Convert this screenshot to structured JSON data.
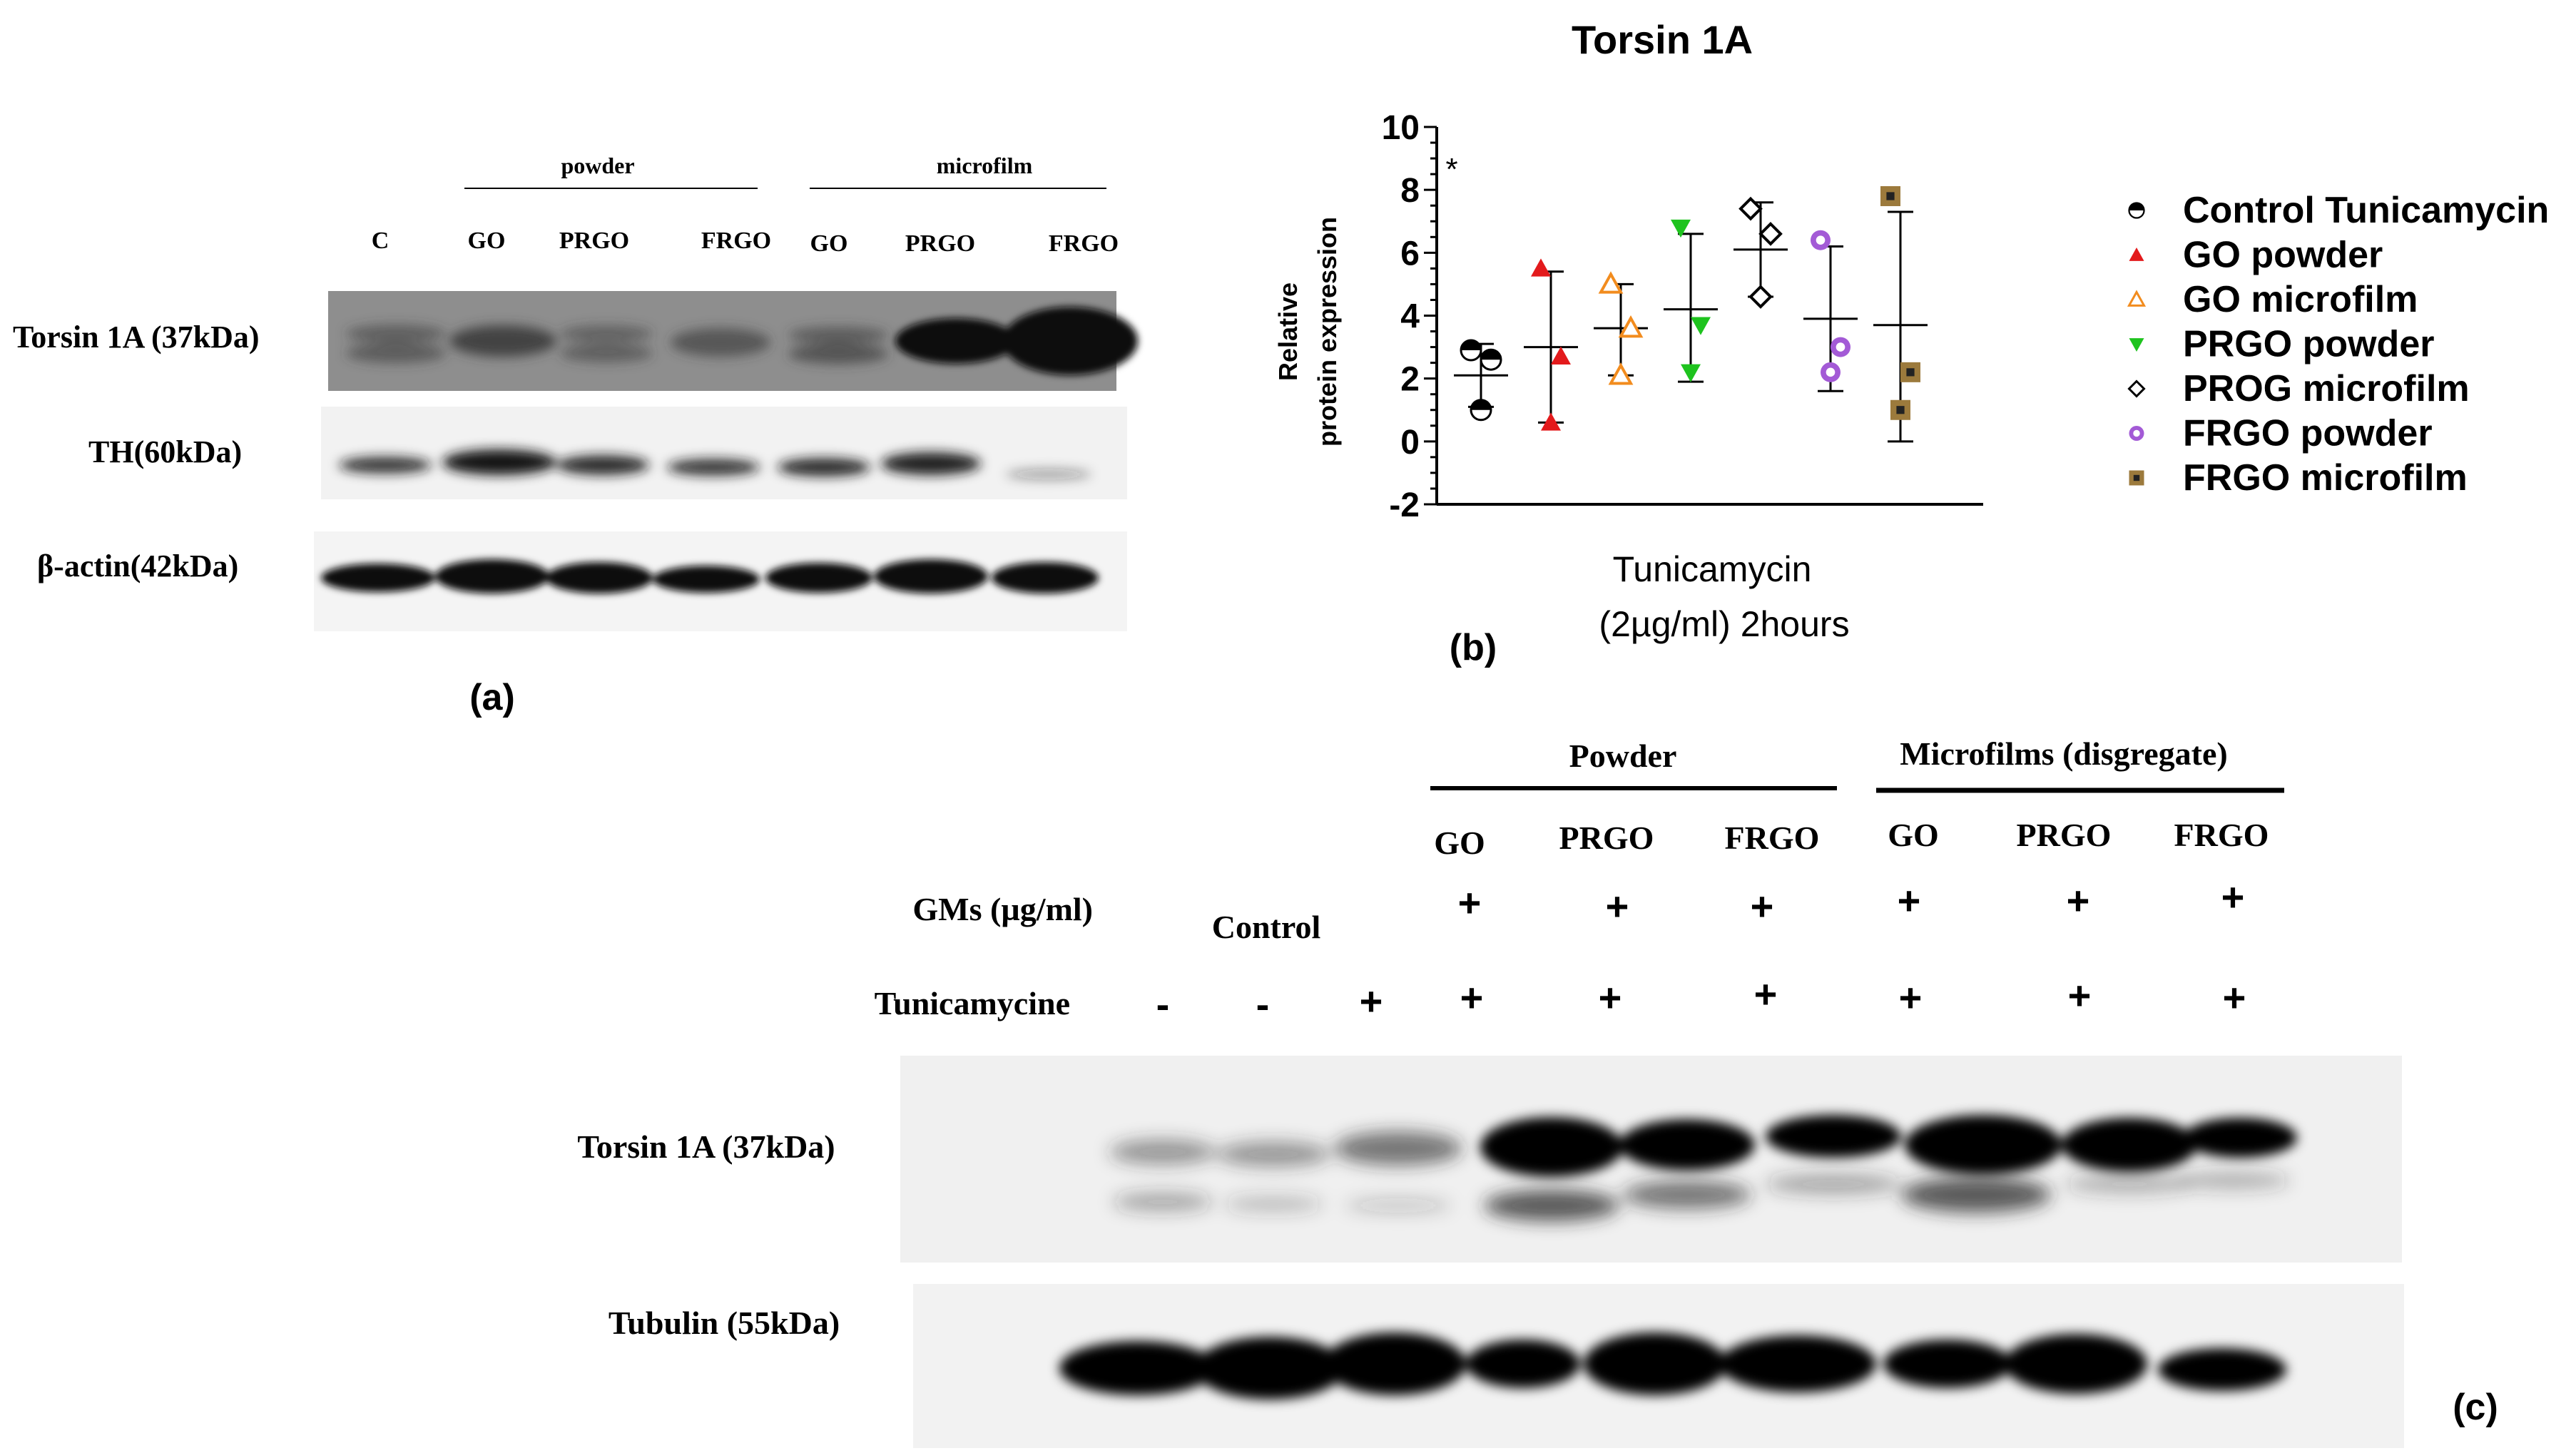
{
  "panel_a": {
    "panel_label": "(a)",
    "group_powder": "powder",
    "group_microfilm": "microfilm",
    "lanes": [
      "C",
      "GO",
      "PRGO",
      "FRGO",
      "GO",
      "PRGO",
      "FRGO"
    ],
    "row_labels": [
      "Torsin 1A (37kDa)",
      "TH(60kDa)",
      "β-actin(42kDa)"
    ]
  },
  "panel_b": {
    "panel_label": "(b)",
    "significance_mark": "*",
    "chart_data": {
      "type": "scatter",
      "title": "Torsin 1A",
      "ylabel_line1": "Relative",
      "ylabel_line2": "protein expression",
      "xlabel_line1": "Tunicamycin",
      "xlabel_line2": "(2µg/ml) 2hours",
      "ylim": [
        -2,
        10
      ],
      "yticks": [
        -2,
        0,
        2,
        4,
        6,
        8,
        10
      ],
      "yticks_labels": [
        "-2",
        "0",
        "2",
        "4",
        "6",
        "8",
        "10"
      ],
      "legend_position": "right",
      "grid": false,
      "series": [
        {
          "name": "Control Tunicamycin",
          "marker": "half-circle",
          "color": "#000000",
          "points": [
            2.9,
            2.6,
            1.0
          ],
          "mean": 2.1,
          "sd_low": 1.1,
          "sd_high": 3.1
        },
        {
          "name": "GO powder",
          "marker": "triangle-up",
          "color": "#e31a1c",
          "points": [
            5.5,
            2.7,
            0.6
          ],
          "mean": 3.0,
          "sd_low": 0.6,
          "sd_high": 5.4
        },
        {
          "name": "GO microfilm",
          "marker": "triangle-up-open",
          "color": "#f28c1e",
          "points": [
            5.0,
            3.6,
            2.1
          ],
          "mean": 3.6,
          "sd_low": 2.1,
          "sd_high": 5.0
        },
        {
          "name": "PRGO powder",
          "marker": "triangle-down",
          "color": "#1ec31e",
          "points": [
            6.8,
            3.7,
            2.2
          ],
          "mean": 4.2,
          "sd_low": 1.9,
          "sd_high": 6.6
        },
        {
          "name": "PROG microfilm",
          "marker": "diamond-open",
          "color": "#000000",
          "points": [
            7.4,
            6.6,
            4.6
          ],
          "mean": 6.1,
          "sd_low": 4.6,
          "sd_high": 7.6
        },
        {
          "name": "FRGO powder",
          "marker": "circle",
          "color": "#a35ad6",
          "points": [
            6.4,
            3.0,
            2.2
          ],
          "mean": 3.9,
          "sd_low": 1.6,
          "sd_high": 6.2
        },
        {
          "name": "FRGO microfilm",
          "marker": "square",
          "color": "#9c7a3c",
          "points": [
            7.8,
            2.2,
            1.0
          ],
          "mean": 3.7,
          "sd_low": 0.0,
          "sd_high": 7.3
        }
      ]
    }
  },
  "panel_c": {
    "panel_label": "(c)",
    "group_powder": "Powder",
    "group_microfilm": "Microfilms (disgregate)",
    "top_labels": [
      "GO",
      "PRGO",
      "FRGO",
      "GO",
      "PRGO",
      "FRGO"
    ],
    "gms_label": "GMs (µg/ml)",
    "control_label": "Control",
    "tunica_label": "Tunicamycine",
    "gms_marks": [
      "+",
      "+",
      "+",
      "+",
      "+",
      "+"
    ],
    "tunica_marks": [
      "-",
      "-",
      "+",
      "+",
      "+",
      "+",
      "+",
      "+",
      "+"
    ],
    "row_labels": [
      "Torsin 1A (37kDa)",
      "Tubulin (55kDa)"
    ]
  }
}
